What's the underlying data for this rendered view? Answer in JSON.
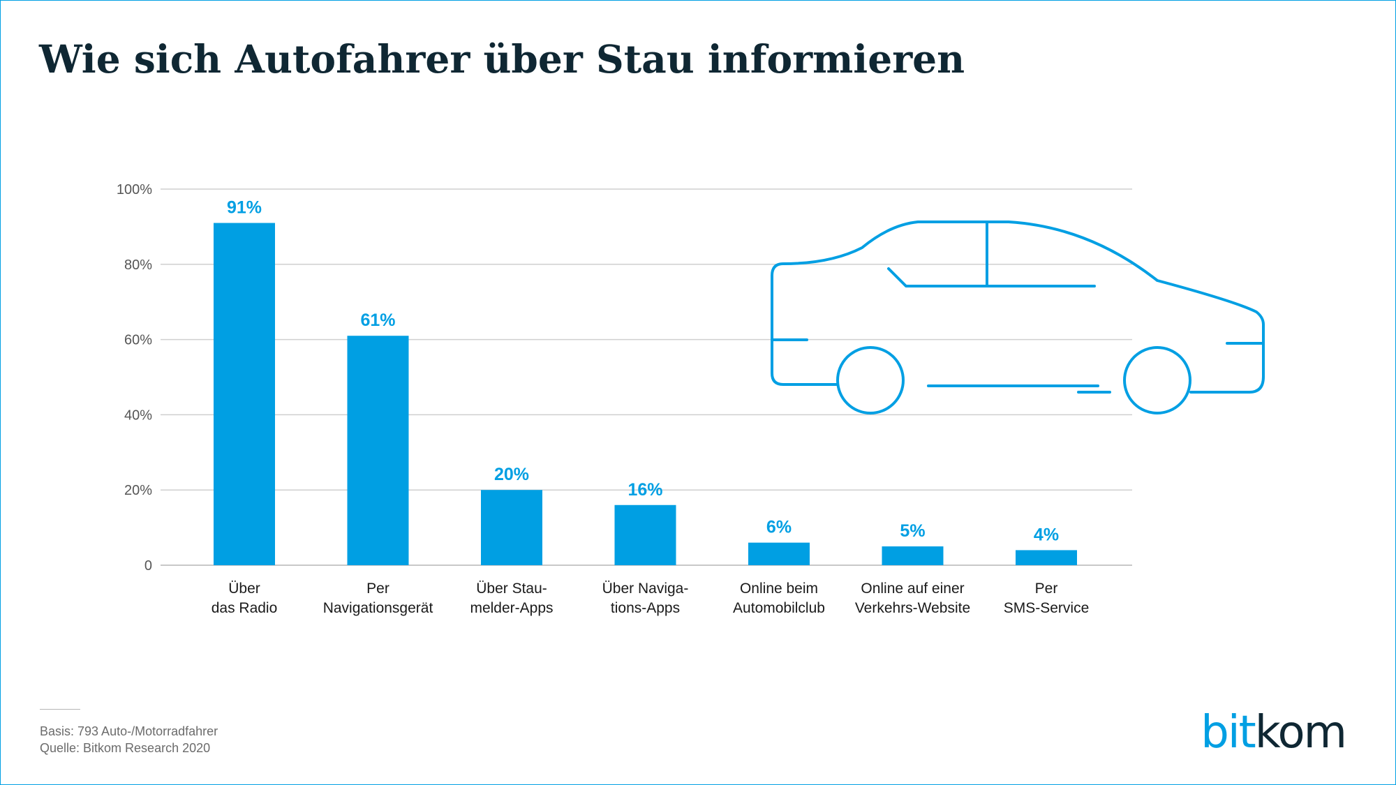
{
  "title": "Wie sich Autofahrer über Stau informieren",
  "footnote": {
    "basis": "Basis: 793 Auto-/Motorradfahrer",
    "source": "Quelle: Bitkom Research 2020"
  },
  "logo": {
    "part1": "bit",
    "part2": "kom"
  },
  "colors": {
    "bar": "#009fe3",
    "title": "#0f2733",
    "grid": "#cfcfcf",
    "axis_text": "#555555",
    "car_outline": "#009fe3"
  },
  "decoration": {
    "illustration": "car-outline-icon"
  },
  "chart_data": {
    "type": "bar",
    "title": "Wie sich Autofahrer über Stau informieren",
    "categories": [
      [
        "Über",
        "das Radio"
      ],
      [
        "Per",
        "Navigationsgerät"
      ],
      [
        "Über Stau-",
        "melder-Apps"
      ],
      [
        "Über Naviga-",
        "tions-Apps"
      ],
      [
        "Online beim",
        "Automobilclub"
      ],
      [
        "Online auf einer",
        "Verkehrs-Website"
      ],
      [
        "Per",
        "SMS-Service"
      ]
    ],
    "values": [
      91,
      61,
      20,
      16,
      6,
      5,
      4
    ],
    "value_labels": [
      "91%",
      "61%",
      "20%",
      "16%",
      "6%",
      "5%",
      "4%"
    ],
    "yticks": [
      0,
      20,
      40,
      60,
      80,
      100
    ],
    "ytick_labels": [
      "0",
      "20%",
      "40%",
      "60%",
      "80%",
      "100%"
    ],
    "ylim": [
      0,
      100
    ],
    "xlabel": "",
    "ylabel": "",
    "grid": true,
    "legend": false
  }
}
